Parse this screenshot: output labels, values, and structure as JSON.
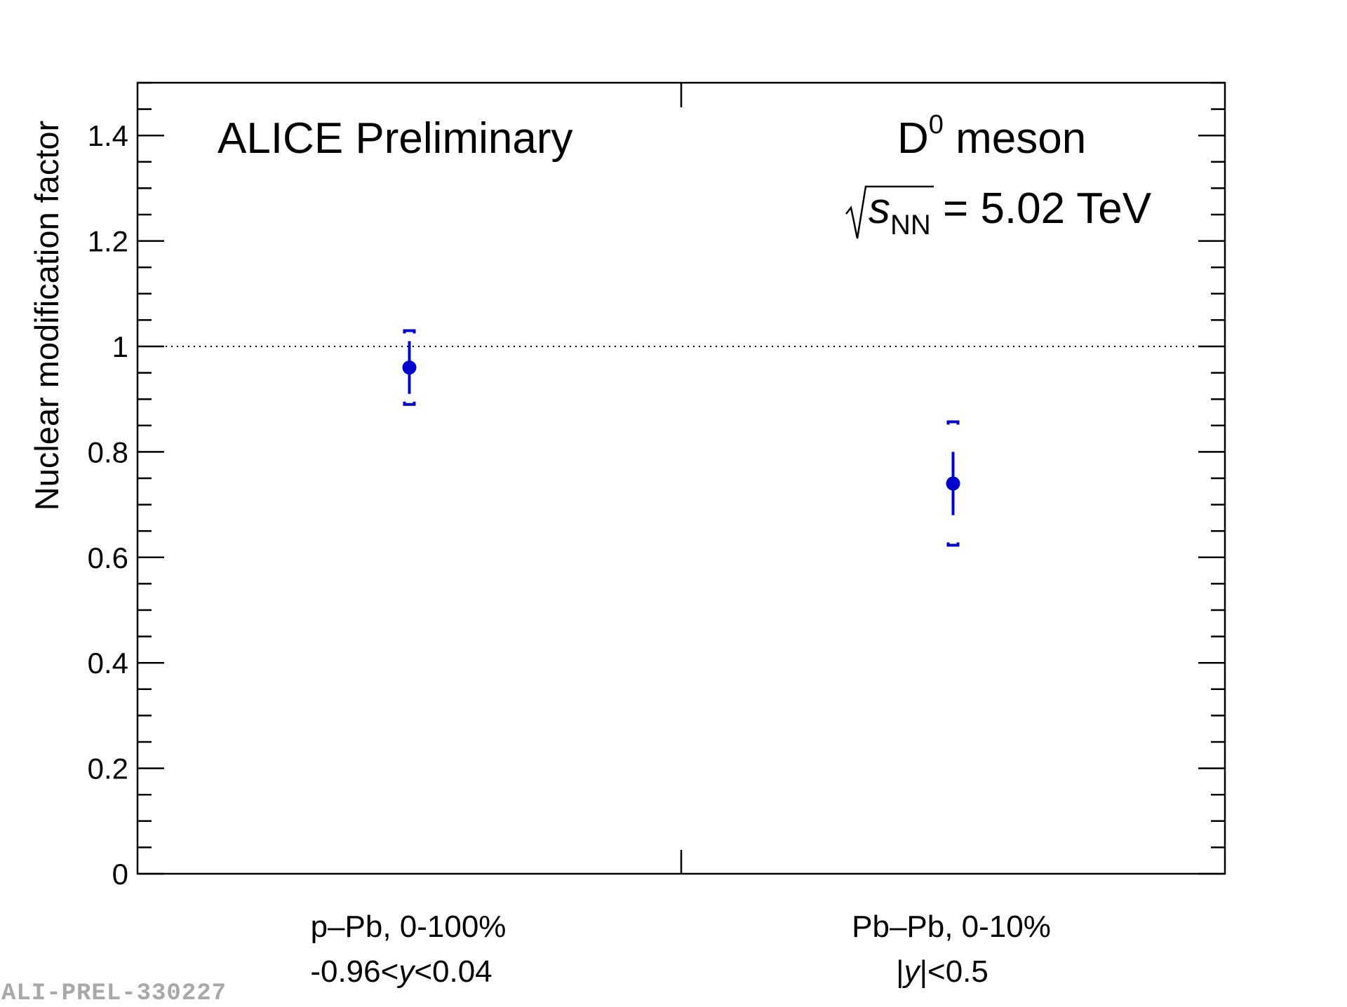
{
  "chart_data": {
    "type": "scatter",
    "title": "ALICE Preliminary",
    "annotations": {
      "particle_base": "D",
      "particle_sup": "0",
      "particle_rest": " meson",
      "energy_var": "s",
      "energy_sub": "NN",
      "energy_value": " = 5.02 TeV"
    },
    "ylabel": "Nuclear modification factor",
    "xlabel": "",
    "ylim": [
      0,
      1.5
    ],
    "yticks": [
      0,
      0.2,
      0.4,
      0.6,
      0.8,
      1,
      1.2,
      1.4
    ],
    "ytick_labels": [
      "0",
      "0.2",
      "0.4",
      "0.6",
      "0.8",
      "1",
      "1.2",
      "1.4"
    ],
    "reference_line": 1,
    "categories": [
      {
        "line1": "p–Pb, 0-100%",
        "line2_pre": "-0.96<",
        "line2_var": "y",
        "line2_post": "<0.04"
      },
      {
        "line1": "Pb–Pb, 0-10%",
        "line2_pre": "|",
        "line2_var": "y",
        "line2_post": "|<0.5"
      }
    ],
    "series": [
      {
        "name": "D0 meson",
        "color": "#0000cc",
        "values": [
          0.96,
          0.74
        ],
        "stat_err": [
          0.05,
          0.06
        ],
        "syst_err": [
          0.07,
          0.117
        ]
      }
    ]
  },
  "footer": {
    "id": "ALI-PREL-330227"
  }
}
